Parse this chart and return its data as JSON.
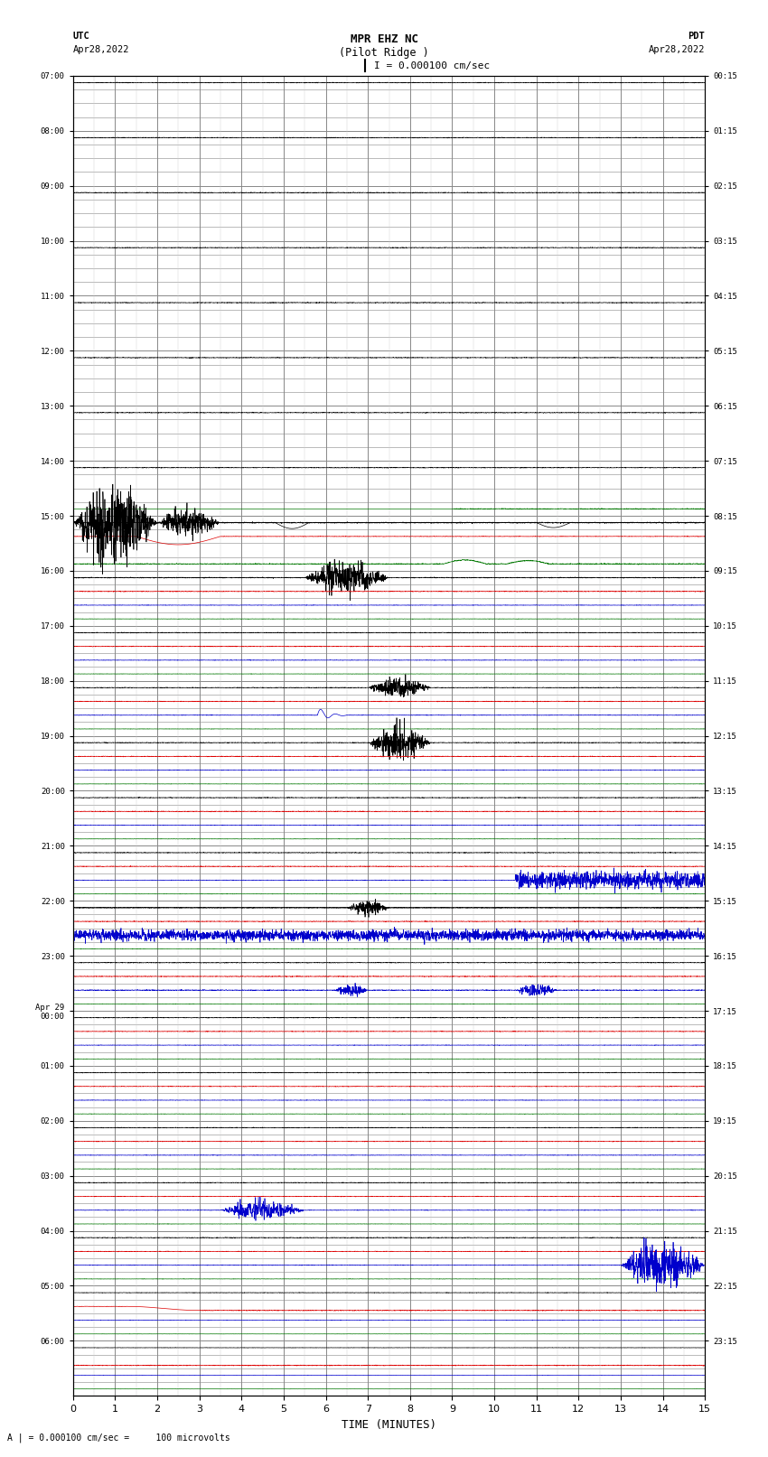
{
  "title_line1": "MPR EHZ NC",
  "title_line2": "(Pilot Ridge )",
  "scale_text": "I = 0.000100 cm/sec",
  "left_header_line1": "UTC",
  "left_header_line2": "Apr28,2022",
  "right_header_line1": "PDT",
  "right_header_line2": "Apr28,2022",
  "footer": "A | = 0.000100 cm/sec =     100 microvolts",
  "xlabel": "TIME (MINUTES)",
  "left_yticks": [
    "07:00",
    "08:00",
    "09:00",
    "10:00",
    "11:00",
    "12:00",
    "13:00",
    "14:00",
    "15:00",
    "16:00",
    "17:00",
    "18:00",
    "19:00",
    "20:00",
    "21:00",
    "22:00",
    "23:00",
    "Apr 29\n00:00",
    "01:00",
    "02:00",
    "03:00",
    "04:00",
    "05:00",
    "06:00"
  ],
  "right_yticks": [
    "00:15",
    "01:15",
    "02:15",
    "03:15",
    "04:15",
    "05:15",
    "06:15",
    "07:15",
    "08:15",
    "09:15",
    "10:15",
    "11:15",
    "12:15",
    "13:15",
    "14:15",
    "15:15",
    "16:15",
    "17:15",
    "18:15",
    "19:15",
    "20:15",
    "21:15",
    "22:15",
    "23:15"
  ],
  "num_rows": 24,
  "subrows": 4,
  "bg_color": "#ffffff",
  "grid_color": "#888888",
  "minor_grid_color": "#cccccc",
  "trace_colors": {
    "black": "#000000",
    "red": "#dd0000",
    "blue": "#0000cc",
    "green": "#007700"
  }
}
